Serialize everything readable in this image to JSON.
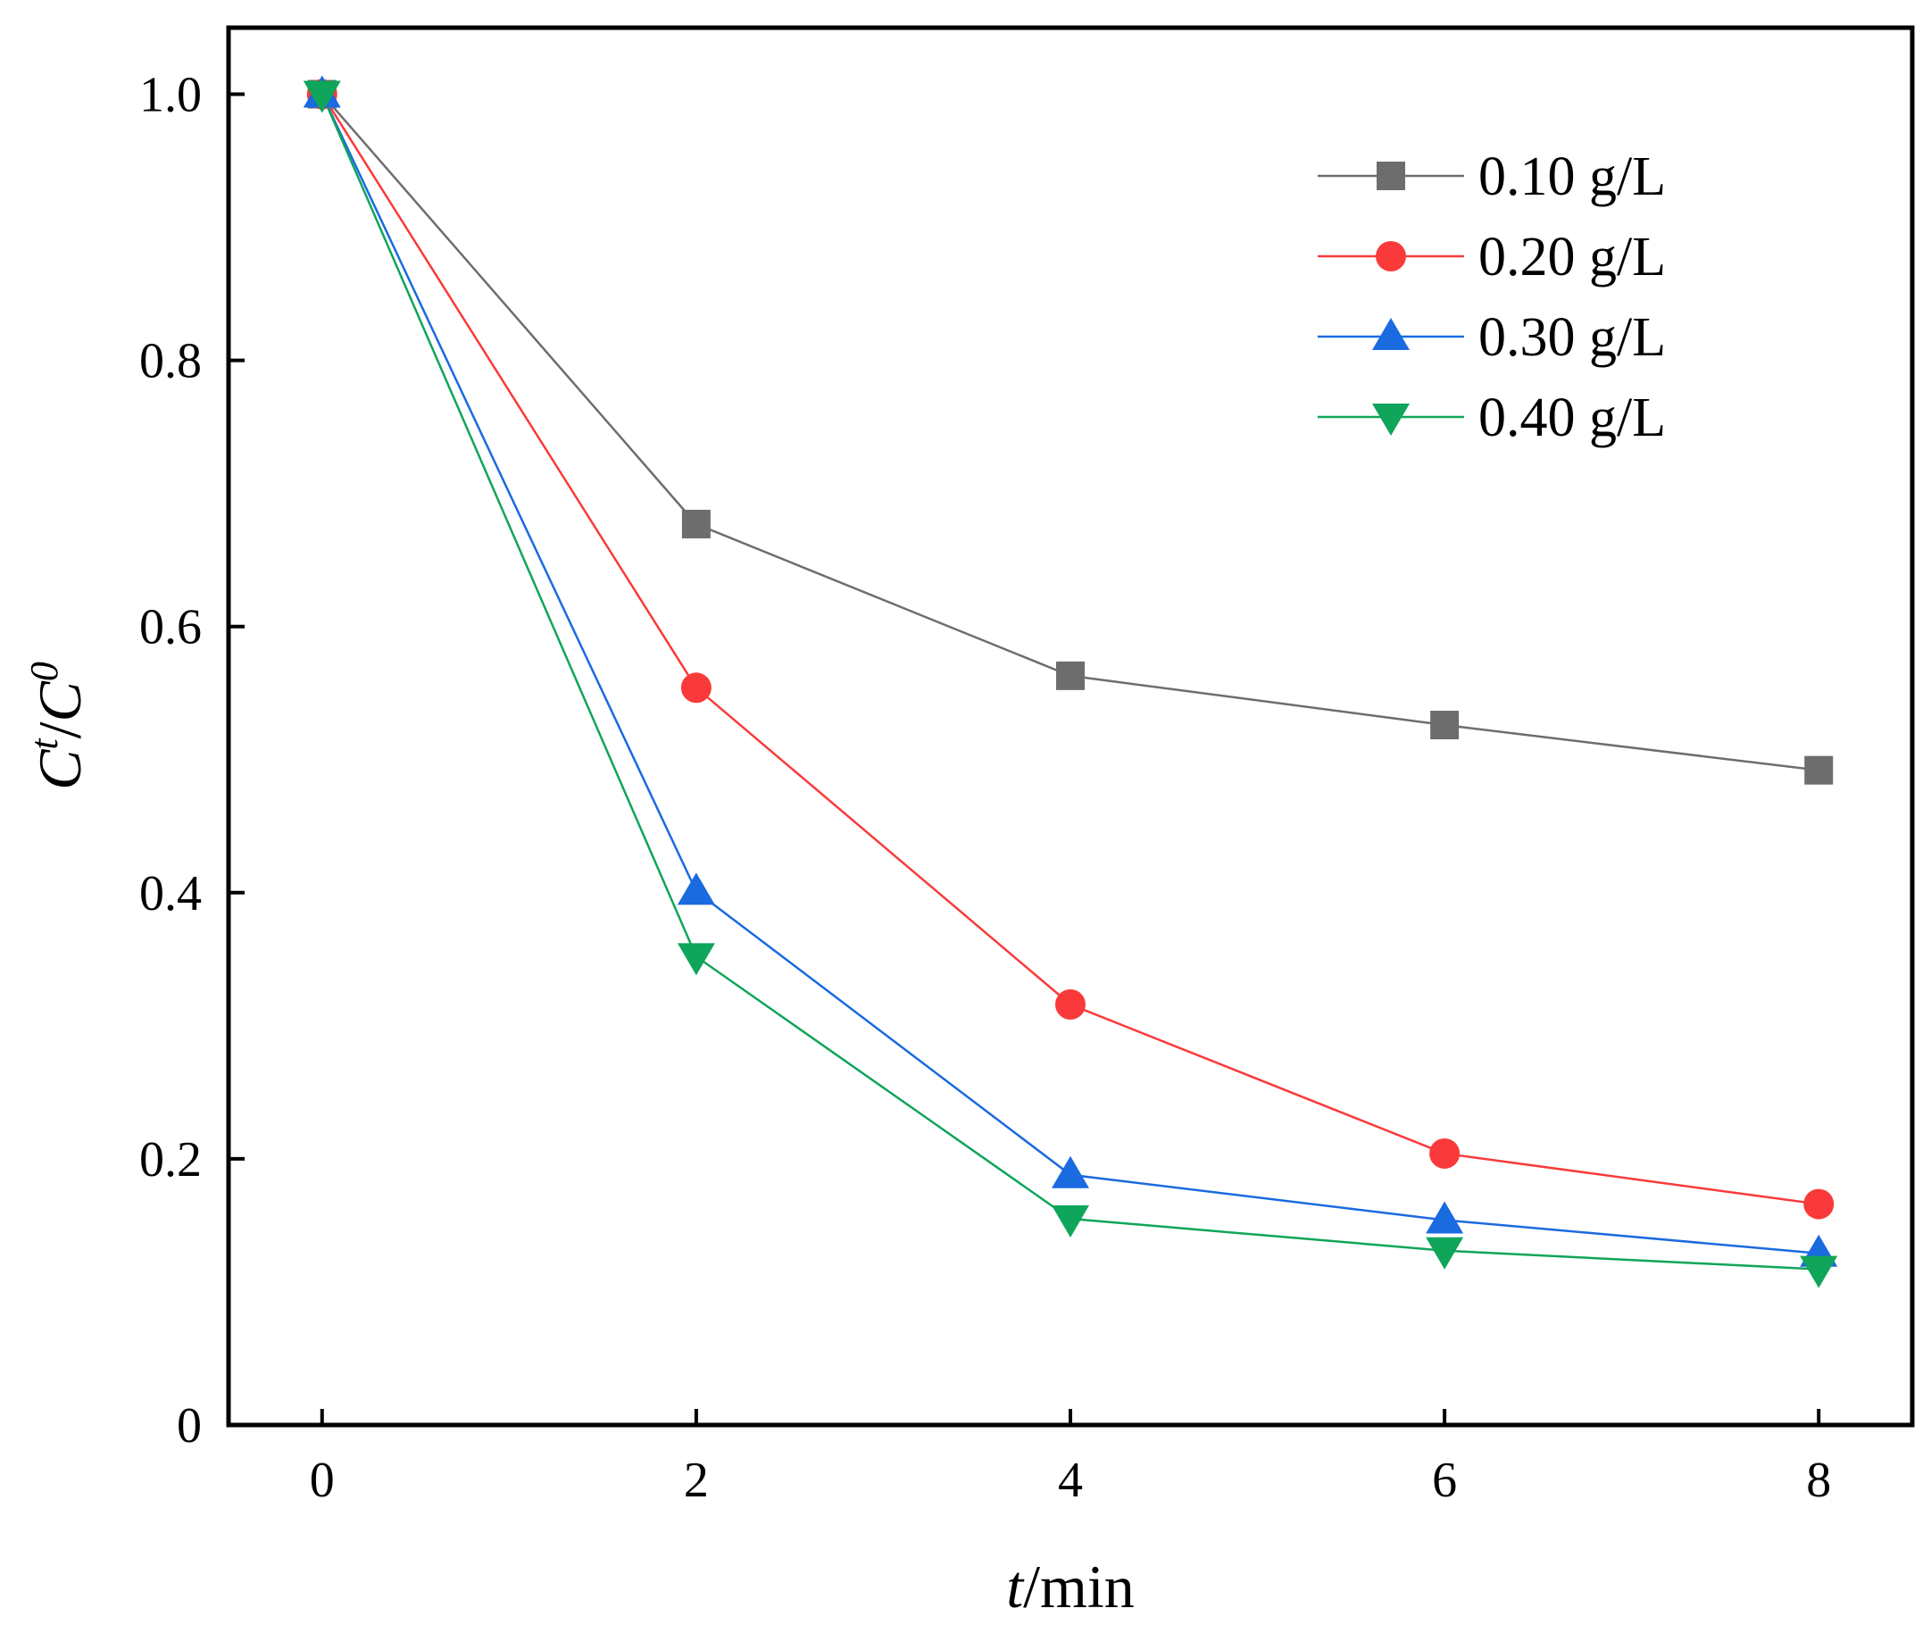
{
  "chart_data": {
    "type": "line",
    "title": "",
    "xlabel": {
      "italic": "t",
      "rest": "/min"
    },
    "ylabel": {
      "num": "C",
      "num_sup": "t",
      "den": "C",
      "den_sup": "0",
      "sep": "/"
    },
    "x": [
      0,
      2,
      4,
      6,
      8
    ],
    "xlim": [
      -0.5,
      8.5
    ],
    "ylim": [
      0,
      1.05
    ],
    "xticks": [
      0,
      2,
      4,
      6,
      8
    ],
    "xtick_labels": [
      "0",
      "2",
      "4",
      "6",
      "8"
    ],
    "yticks": [
      0,
      0.2,
      0.4,
      0.6,
      0.8,
      1.0
    ],
    "ytick_labels": [
      "0",
      "0.2",
      "0.4",
      "0.6",
      "0.8",
      "1.0"
    ],
    "grid": false,
    "legend_position": "top-right",
    "series": [
      {
        "name": "0.10 g/L",
        "marker": "square",
        "color": "#6d6d6d",
        "values": [
          1.0,
          0.677,
          0.563,
          0.526,
          0.492
        ]
      },
      {
        "name": "0.20 g/L",
        "marker": "circle",
        "color": "#fa3a3a",
        "values": [
          1.0,
          0.554,
          0.316,
          0.204,
          0.166
        ]
      },
      {
        "name": "0.30 g/L",
        "marker": "triangle-up",
        "color": "#1a6ae0",
        "values": [
          1.0,
          0.401,
          0.188,
          0.154,
          0.129
        ]
      },
      {
        "name": "0.40 g/L",
        "marker": "triangle-down",
        "color": "#0fa55a",
        "values": [
          1.0,
          0.352,
          0.155,
          0.131,
          0.117
        ]
      }
    ]
  }
}
